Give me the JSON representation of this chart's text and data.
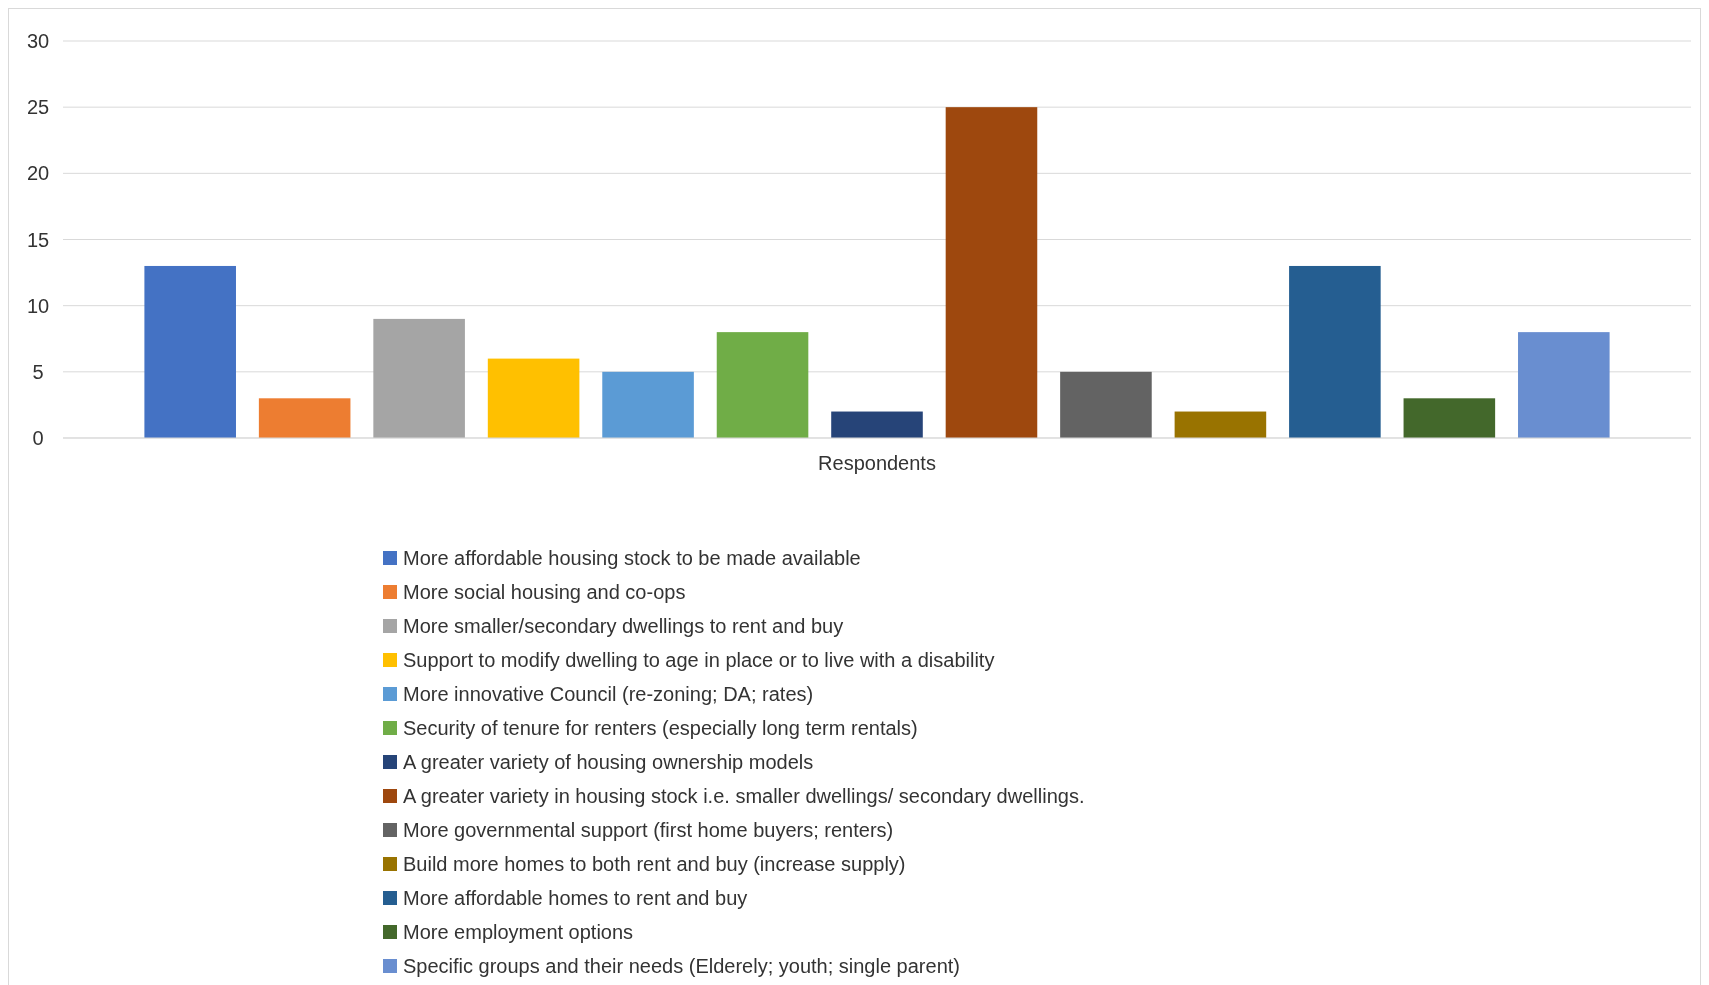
{
  "chart_data": {
    "type": "bar",
    "categories": [
      "Respondents"
    ],
    "ylim": [
      0,
      30
    ],
    "yticks": [
      0,
      5,
      10,
      15,
      20,
      25,
      30
    ],
    "grid": "y",
    "legend": "bottom",
    "series": [
      {
        "name": "More affordable housing stock to be made available",
        "color": "#4472c4",
        "values": [
          13
        ]
      },
      {
        "name": "More social housing and co-ops",
        "color": "#ed7d31",
        "values": [
          3
        ]
      },
      {
        "name": "More smaller/secondary dwellings to rent and buy",
        "color": "#a5a5a5",
        "values": [
          9
        ]
      },
      {
        "name": "Support to modify dwelling to age in place or to live with a disability",
        "color": "#ffc000",
        "values": [
          6
        ]
      },
      {
        "name": "More innovative Council (re-zoning; DA; rates)",
        "color": "#5b9bd5",
        "values": [
          5
        ]
      },
      {
        "name": "Security of tenure for renters (especially long term rentals)",
        "color": "#70ad47",
        "values": [
          8
        ]
      },
      {
        "name": "A greater variety of housing ownership models",
        "color": "#264478",
        "values": [
          2
        ]
      },
      {
        "name": "A greater variety in housing stock i.e. smaller dwellings/ secondary dwellings.",
        "color": "#9e480e",
        "values": [
          25
        ]
      },
      {
        "name": "More governmental support (first home buyers; renters)",
        "color": "#636363",
        "values": [
          5
        ]
      },
      {
        "name": "Build more homes to both rent and buy (increase supply)",
        "color": "#997300",
        "values": [
          2
        ]
      },
      {
        "name": "More affordable homes to rent and buy",
        "color": "#255e91",
        "values": [
          13
        ]
      },
      {
        "name": "More employment options",
        "color": "#43682b",
        "values": [
          3
        ]
      },
      {
        "name": "Specific groups and their needs (Elderely; youth; single parent)",
        "color": "#698ed0",
        "values": [
          8
        ]
      }
    ]
  }
}
